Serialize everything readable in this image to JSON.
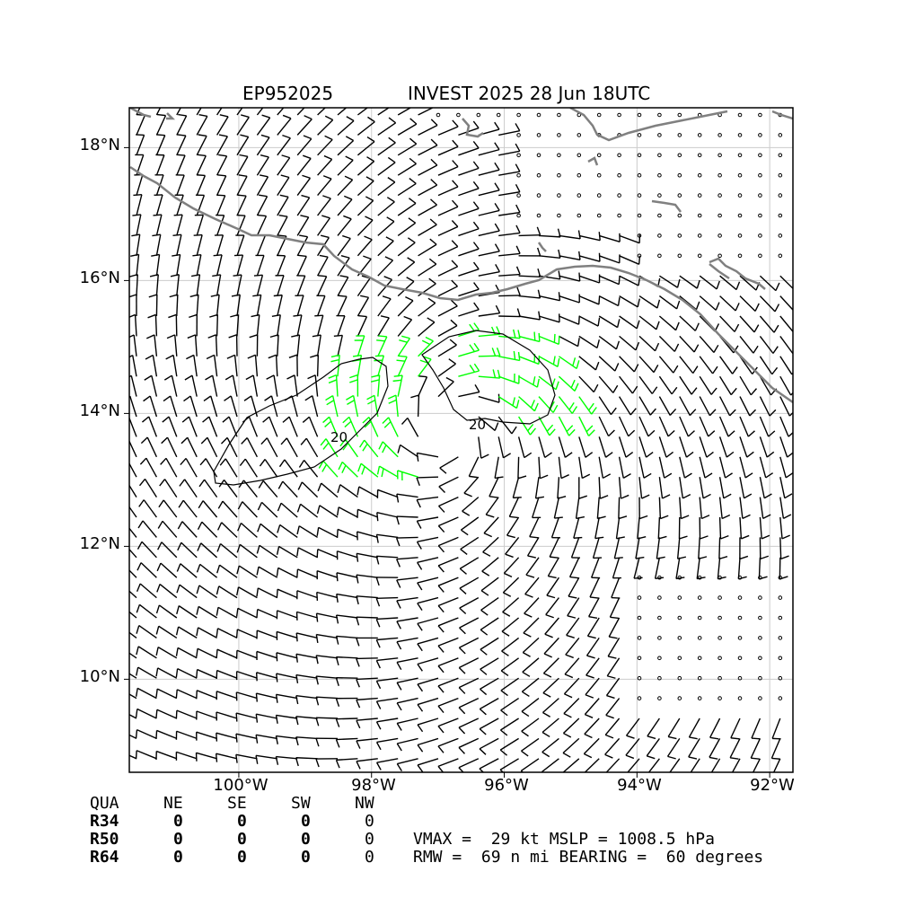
{
  "title": {
    "storm_id": "EP952025",
    "description": "INVEST 2025 28 Jun 18UTC"
  },
  "axes": {
    "lat_labels": [
      "18°N",
      "16°N",
      "14°N",
      "12°N",
      "10°N"
    ],
    "lon_labels": [
      "100°W",
      "98°W",
      "96°W",
      "94°W",
      "92°W"
    ],
    "lon_range": [
      -101.65,
      -91.65
    ],
    "lat_range": [
      8.6,
      18.6
    ],
    "grid": true
  },
  "contours": [
    {
      "label": "20",
      "level": 20
    },
    {
      "label": "20",
      "level": 20
    }
  ],
  "colors": {
    "coastline": "#808080",
    "barb": "#000000",
    "high_wind_barb": "#00ff00",
    "grid": "#cccccc",
    "contour": "#000000"
  },
  "quadrants": {
    "header": [
      "QUA",
      "NE",
      "SE",
      "SW",
      "NW"
    ],
    "rows": [
      {
        "label": "R34",
        "values": [
          "0",
          "0",
          "0",
          "0"
        ]
      },
      {
        "label": "R50",
        "values": [
          "0",
          "0",
          "0",
          "0"
        ]
      },
      {
        "label": "R64",
        "values": [
          "0",
          "0",
          "0",
          "0"
        ]
      }
    ]
  },
  "storm_info": {
    "line1": "VMAX =  29 kt MSLP = 1008.5 hPa",
    "line2": "RMW =  69 n mi BEARING =  60 degrees"
  }
}
